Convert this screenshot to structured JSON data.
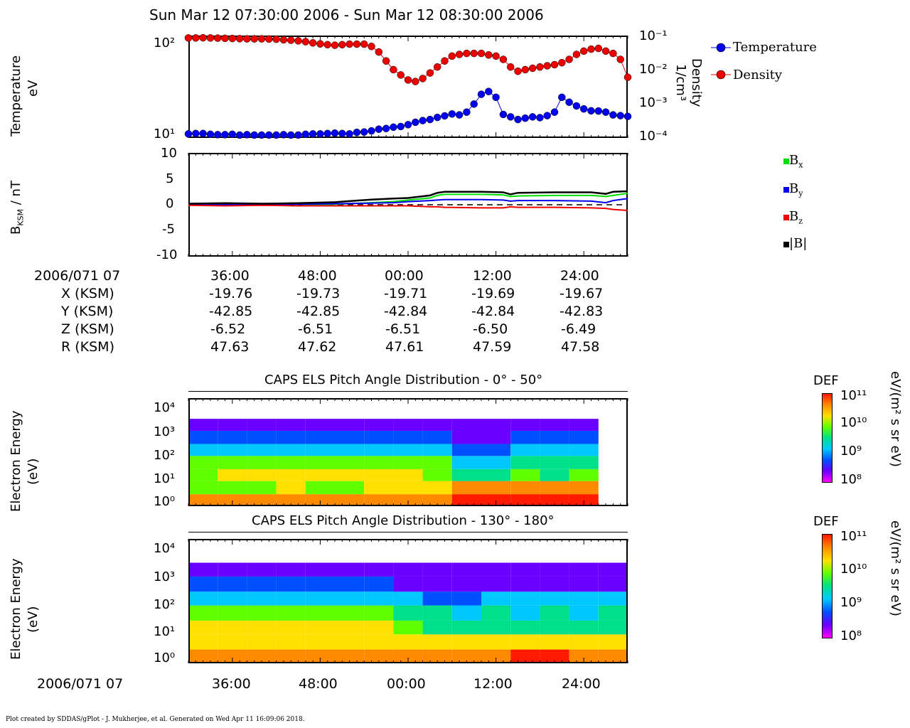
{
  "title": "Sun Mar 12 07:30:00 2006 - Sun Mar 12 08:30:00 2006",
  "footer": "Plot created by SDDAS/gPlot - J. Mukherjee, et al.  Generated on Wed Apr 11 16:09:06 2018.",
  "colors": {
    "temperature": "#0000ee",
    "density": "#ee0000",
    "bx": "#00dd00",
    "by": "#0000ee",
    "bz": "#ee0000",
    "bmag": "#000000"
  },
  "panels": {
    "temp": {
      "ylabel_line1": "Temperature",
      "ylabel_line2": "eV",
      "right_label_line1": "Density",
      "right_label_line2": "1/cm³",
      "yticks": [
        "10²",
        "10¹"
      ],
      "right_ticks": [
        "10⁻¹",
        "10⁻²",
        "10⁻³",
        "10⁻⁴"
      ],
      "legend": [
        "Temperature",
        "Density"
      ]
    },
    "mag": {
      "ylabel": "B",
      "ylabel_sub": "KSM",
      "ylabel_tail": " / nT",
      "yticks": [
        "10",
        "5",
        "0",
        "-5",
        "-10"
      ],
      "legend": [
        {
          "base": "B",
          "sub": "x"
        },
        {
          "base": "B",
          "sub": "y"
        },
        {
          "base": "B",
          "sub": "z"
        },
        {
          "base": "|B|",
          "sub": ""
        }
      ]
    },
    "els1": {
      "title": "CAPS ELS Pitch Angle Distribution - 0° - 50°",
      "ylabel_line1": "Electron Energy",
      "ylabel_line2": "(eV)",
      "yticks": [
        "10⁴",
        "10³",
        "10²",
        "10¹",
        "10⁰"
      ]
    },
    "els2": {
      "title": "CAPS ELS Pitch Angle Distribution - 130° - 180°",
      "ylabel_line1": "Electron Energy",
      "ylabel_line2": "(eV)",
      "yticks": [
        "10⁴",
        "10³",
        "10²",
        "10¹",
        "10⁰"
      ]
    }
  },
  "colorbar": {
    "label": "DEF",
    "units": "eV/(m² s sr eV)",
    "ticks": [
      "10¹¹",
      "10¹⁰",
      "10⁹",
      "10⁸"
    ]
  },
  "ephemeris": {
    "date_label": "2006/071 07",
    "times": [
      "36:00",
      "48:00",
      "00:00",
      "12:00",
      "24:00"
    ],
    "rows": [
      {
        "label": "X (KSM)",
        "values": [
          "-19.76",
          "-19.73",
          "-19.71",
          "-19.69",
          "-19.67"
        ]
      },
      {
        "label": "Y (KSM)",
        "values": [
          "-42.85",
          "-42.85",
          "-42.84",
          "-42.84",
          "-42.83"
        ]
      },
      {
        "label": "Z (KSM)",
        "values": [
          "-6.52",
          "-6.51",
          "-6.51",
          "-6.50",
          "-6.49"
        ]
      },
      {
        "label": "R (KSM)",
        "values": [
          "47.63",
          "47.62",
          "47.61",
          "47.59",
          "47.58"
        ]
      }
    ]
  },
  "bottom_axis": {
    "date_label": "2006/071 07",
    "times": [
      "36:00",
      "48:00",
      "00:00",
      "12:00",
      "24:00"
    ]
  },
  "chart_data": [
    {
      "type": "scatter",
      "title": "Sun Mar 12 07:30:00 2006 - Sun Mar 12 08:30:00 2006",
      "ylabel": "Temperature eV",
      "y2label": "Density 1/cm³",
      "yscale": "log",
      "ylim": [
        9.5,
        120
      ],
      "y2scale": "log",
      "y2lim": [
        0.0001,
        0.1
      ],
      "x_axis": "minutes after 07:30",
      "x_range": [
        0,
        60
      ],
      "series": [
        {
          "name": "Temperature",
          "axis": "left",
          "x": [
            0,
            1,
            2,
            3,
            4,
            5,
            6,
            7,
            8,
            9,
            10,
            11,
            12,
            13,
            14,
            15,
            16,
            17,
            18,
            19,
            20,
            21,
            22,
            23,
            24,
            25,
            26,
            27,
            28,
            29,
            30,
            31,
            32,
            33,
            34,
            35,
            36,
            37,
            38,
            39,
            40,
            41,
            42,
            43,
            44,
            45,
            46,
            47,
            48,
            49,
            50,
            51,
            52,
            53,
            54,
            55,
            56,
            57,
            58,
            59,
            60
          ],
          "values": [
            10.5,
            10.6,
            10.6,
            10.4,
            10.3,
            10.3,
            10.4,
            10.2,
            10.3,
            10.2,
            10.2,
            10.2,
            10.2,
            10.3,
            10.2,
            10.2,
            10.4,
            10.5,
            10.5,
            10.6,
            10.7,
            10.6,
            10.5,
            10.9,
            11.0,
            11.3,
            11.8,
            12.0,
            12.4,
            12.6,
            13.2,
            14.0,
            14.6,
            15.0,
            15.8,
            16.4,
            17.2,
            16.8,
            18.0,
            22,
            28,
            30,
            26,
            17,
            16,
            15,
            15.5,
            16,
            15.7,
            16.5,
            18,
            26,
            23,
            21,
            19.5,
            18.6,
            18.5,
            18,
            16.8,
            16.5,
            16.2
          ]
        },
        {
          "name": "Density",
          "axis": "right",
          "x": [
            0,
            1,
            2,
            3,
            4,
            5,
            6,
            7,
            8,
            9,
            10,
            11,
            12,
            13,
            14,
            15,
            16,
            17,
            18,
            19,
            20,
            21,
            22,
            23,
            24,
            25,
            26,
            27,
            28,
            29,
            30,
            31,
            32,
            33,
            34,
            35,
            36,
            37,
            38,
            39,
            40,
            41,
            42,
            43,
            44,
            45,
            46,
            47,
            48,
            49,
            50,
            51,
            52,
            53,
            54,
            55,
            56,
            57,
            58,
            59,
            60
          ],
          "values": [
            0.085,
            0.085,
            0.086,
            0.085,
            0.084,
            0.083,
            0.082,
            0.081,
            0.08,
            0.08,
            0.08,
            0.079,
            0.078,
            0.075,
            0.073,
            0.07,
            0.066,
            0.061,
            0.057,
            0.054,
            0.052,
            0.054,
            0.056,
            0.056,
            0.056,
            0.048,
            0.033,
            0.018,
            0.01,
            0.007,
            0.005,
            0.0045,
            0.0055,
            0.008,
            0.012,
            0.018,
            0.025,
            0.028,
            0.03,
            0.03,
            0.03,
            0.027,
            0.025,
            0.02,
            0.012,
            0.009,
            0.01,
            0.011,
            0.012,
            0.013,
            0.014,
            0.016,
            0.02,
            0.028,
            0.035,
            0.04,
            0.042,
            0.035,
            0.03,
            0.02,
            0.006
          ]
        }
      ]
    },
    {
      "type": "line",
      "ylabel": "B KSM / nT",
      "ylim": [
        -10,
        10
      ],
      "x_axis": "minutes after 07:30",
      "x_range": [
        0,
        60
      ],
      "series": [
        {
          "name": "Bx",
          "x": [
            0,
            5,
            10,
            15,
            20,
            25,
            28,
            30,
            33,
            34,
            35,
            40,
            43,
            44,
            45,
            50,
            55,
            57,
            58,
            60
          ],
          "values": [
            0,
            -0.1,
            0.0,
            -0.2,
            0.1,
            0.4,
            0.6,
            0.9,
            1.3,
            1.8,
            2.0,
            2.0,
            1.9,
            1.6,
            1.7,
            1.8,
            1.8,
            1.6,
            1.8,
            2.2
          ]
        },
        {
          "name": "By",
          "x": [
            0,
            5,
            10,
            15,
            20,
            25,
            28,
            30,
            33,
            34,
            35,
            40,
            43,
            44,
            45,
            50,
            55,
            57,
            58,
            60
          ],
          "values": [
            0,
            0.0,
            0.0,
            0.1,
            0.2,
            0.3,
            0.4,
            0.6,
            0.8,
            0.9,
            1.0,
            1.0,
            0.9,
            0.7,
            0.8,
            0.8,
            0.7,
            0.4,
            0.8,
            1.2
          ]
        },
        {
          "name": "Bz",
          "x": [
            0,
            5,
            10,
            15,
            20,
            25,
            28,
            30,
            33,
            34,
            35,
            40,
            43,
            44,
            45,
            50,
            55,
            57,
            58,
            60
          ],
          "values": [
            -0.1,
            -0.2,
            -0.1,
            -0.2,
            -0.2,
            -0.2,
            -0.2,
            -0.2,
            -0.4,
            -0.4,
            -0.5,
            -0.6,
            -0.6,
            -0.4,
            -0.5,
            -0.5,
            -0.6,
            -0.7,
            -0.9,
            -1.1
          ]
        },
        {
          "name": "|B|",
          "x": [
            0,
            5,
            10,
            15,
            20,
            25,
            28,
            30,
            33,
            34,
            35,
            40,
            43,
            44,
            45,
            50,
            55,
            57,
            58,
            60
          ],
          "values": [
            0.2,
            0.3,
            0.2,
            0.3,
            0.5,
            1.0,
            1.2,
            1.3,
            1.8,
            2.3,
            2.5,
            2.5,
            2.4,
            2.0,
            2.3,
            2.4,
            2.4,
            2.1,
            2.5,
            2.6
          ]
        }
      ]
    },
    {
      "type": "heatmap",
      "title": "CAPS ELS Pitch Angle Distribution - 0° - 50°",
      "ylabel": "Electron Energy (eV)",
      "yscale": "log",
      "ylim": [
        1,
        20000
      ],
      "colorbar_label": "DEF eV/(m² s sr eV)",
      "clim": [
        100000000.0,
        100000000000.0
      ],
      "x_axis": "minutes after 07:30",
      "x_range": [
        0,
        60
      ],
      "x": [
        0,
        4,
        8,
        12,
        16,
        20,
        24,
        28,
        32,
        36,
        40,
        44,
        48,
        52
      ],
      "energies": [
        1,
        3,
        10,
        30,
        100,
        300,
        1000
      ],
      "log10_def": [
        [
          10.5,
          10.3,
          10.4,
          10.4,
          10.3,
          10.4,
          10.5,
          10.5,
          10.6,
          10.7,
          10.8,
          10.8,
          10.9,
          10.9
        ],
        [
          9.8,
          9.8,
          9.8,
          9.9,
          9.8,
          9.8,
          9.9,
          10.0,
          10.2,
          10.4,
          10.5,
          10.4,
          10.5,
          10.6
        ],
        [
          9.8,
          9.9,
          9.9,
          10.0,
          9.9,
          9.9,
          9.9,
          9.9,
          9.8,
          9.4,
          9.3,
          9.6,
          9.5,
          9.6
        ],
        [
          9.7,
          9.8,
          9.8,
          9.8,
          9.8,
          9.8,
          9.8,
          9.8,
          9.6,
          9.0,
          8.9,
          9.3,
          9.2,
          9.3
        ],
        [
          9.0,
          9.1,
          9.1,
          9.1,
          9.0,
          9.1,
          9.1,
          9.1,
          9.0,
          8.7,
          8.7,
          9.0,
          9.0,
          9.0
        ],
        [
          8.4,
          8.5,
          8.5,
          8.5,
          8.4,
          8.5,
          8.5,
          8.6,
          8.5,
          8.3,
          8.3,
          8.5,
          8.5,
          8.5
        ],
        [
          8.1,
          8.1,
          8.1,
          8.1,
          8.1,
          8.1,
          8.1,
          8.2,
          8.2,
          8.1,
          8.1,
          8.2,
          8.2,
          8.2
        ]
      ]
    },
    {
      "type": "heatmap",
      "title": "CAPS ELS Pitch Angle Distribution - 130° - 180°",
      "ylabel": "Electron Energy (eV)",
      "yscale": "log",
      "ylim": [
        1,
        20000
      ],
      "colorbar_label": "DEF eV/(m² s sr eV)",
      "clim": [
        100000000.0,
        100000000000.0
      ],
      "x_axis": "minutes after 07:30",
      "x_range": [
        0,
        60
      ],
      "x": [
        0,
        4,
        8,
        12,
        16,
        20,
        24,
        28,
        32,
        36,
        40,
        44,
        48,
        52,
        56
      ],
      "energies": [
        1,
        3,
        10,
        30,
        100,
        300,
        1000
      ],
      "log10_def": [
        [
          10.4,
          10.4,
          10.5,
          10.4,
          10.4,
          10.4,
          10.5,
          10.5,
          10.6,
          10.6,
          10.6,
          10.7,
          10.7,
          10.6,
          10.6
        ],
        [
          9.9,
          9.9,
          9.9,
          9.9,
          9.9,
          9.9,
          9.9,
          10.0,
          10.1,
          10.2,
          10.2,
          10.1,
          10.1,
          10.1,
          10.1
        ],
        [
          9.9,
          9.9,
          9.9,
          9.9,
          9.9,
          9.9,
          9.9,
          9.7,
          9.5,
          9.2,
          9.4,
          9.4,
          9.4,
          9.3,
          9.3
        ],
        [
          9.8,
          9.8,
          9.8,
          9.8,
          9.8,
          9.8,
          9.7,
          9.3,
          9.2,
          9.0,
          9.2,
          9.1,
          9.2,
          9.1,
          9.2
        ],
        [
          9.0,
          9.0,
          9.0,
          9.0,
          9.0,
          9.1,
          9.0,
          8.8,
          8.6,
          8.5,
          8.8,
          8.8,
          8.9,
          8.8,
          8.8
        ],
        [
          8.4,
          8.4,
          8.4,
          8.5,
          8.5,
          8.5,
          8.4,
          8.3,
          8.2,
          8.2,
          8.3,
          8.3,
          8.3,
          8.3,
          8.3
        ],
        [
          8.1,
          8.1,
          8.1,
          8.1,
          8.1,
          8.1,
          8.1,
          8.1,
          8.1,
          8.1,
          8.1,
          8.1,
          8.1,
          8.1,
          8.1
        ]
      ]
    }
  ]
}
